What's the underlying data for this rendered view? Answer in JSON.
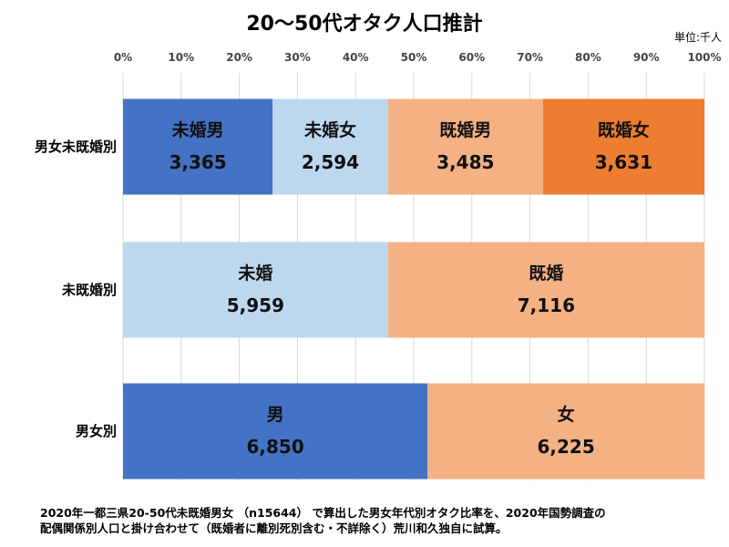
{
  "chart_data": {
    "type": "bar",
    "orientation": "horizontal",
    "stacked": "percent",
    "title": "20～50代オタク人口推計",
    "unit": "単位:千人",
    "xlim": [
      0,
      100
    ],
    "x_ticks": [
      "0%",
      "10%",
      "20%",
      "30%",
      "40%",
      "50%",
      "60%",
      "70%",
      "80%",
      "90%",
      "100%"
    ],
    "grid": true,
    "rows": [
      {
        "label": "男女未既婚別",
        "segments": [
          {
            "name": "未婚男",
            "value": 3365,
            "value_label": "3,365",
            "color": "#4472C4"
          },
          {
            "name": "未婚女",
            "value": 2594,
            "value_label": "2,594",
            "color": "#BDD7EE"
          },
          {
            "name": "既婚男",
            "value": 3485,
            "value_label": "3,485",
            "color": "#F4B183"
          },
          {
            "name": "既婚女",
            "value": 3631,
            "value_label": "3,631",
            "color": "#ED7D31"
          }
        ]
      },
      {
        "label": "未既婚別",
        "segments": [
          {
            "name": "未婚",
            "value": 5959,
            "value_label": "5,959",
            "color": "#BDD7EE"
          },
          {
            "name": "既婚",
            "value": 7116,
            "value_label": "7,116",
            "color": "#F4B183"
          }
        ]
      },
      {
        "label": "男女別",
        "segments": [
          {
            "name": "男",
            "value": 6850,
            "value_label": "6,850",
            "color": "#4472C4"
          },
          {
            "name": "女",
            "value": 6225,
            "value_label": "6,225",
            "color": "#F4B183"
          }
        ]
      }
    ]
  },
  "footnote": [
    "2020年一都三県20-50代未既婚男女 （n15644） で算出した男女年代別オタク比率を、2020年国勢調査の",
    "配偶関係別人口と掛け合わせて（既婚者に離別死別含む・不詳除く）荒川和久独自に試算。"
  ]
}
